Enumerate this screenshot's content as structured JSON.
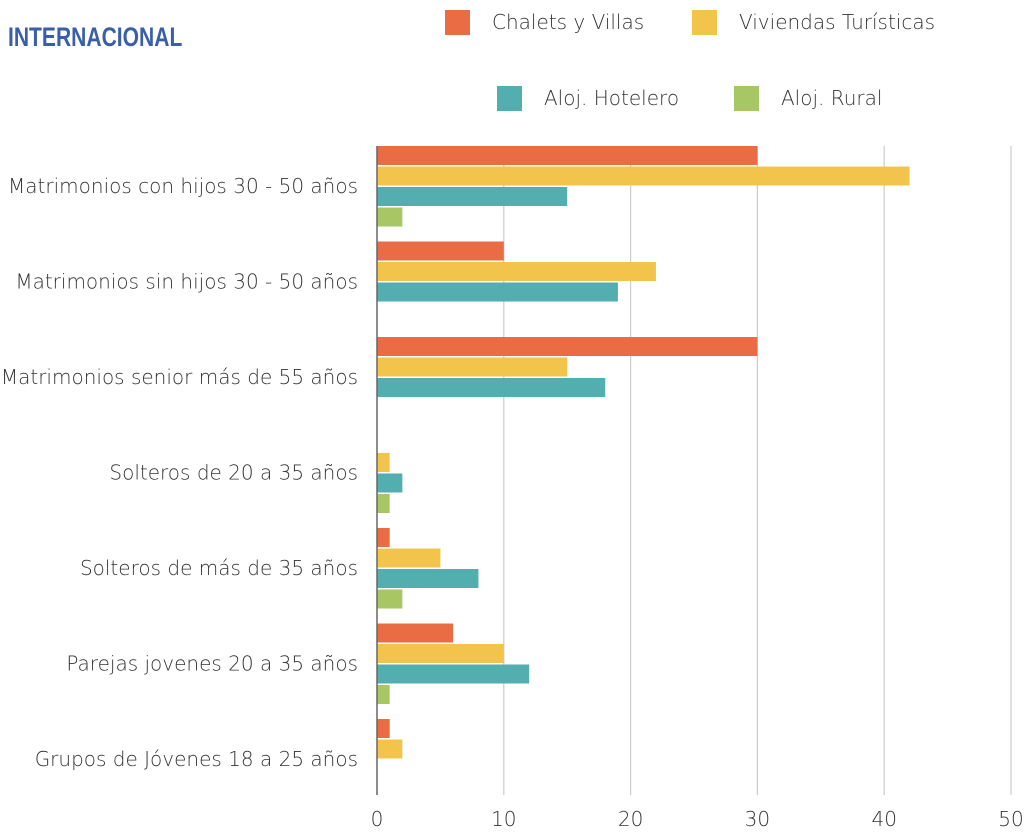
{
  "title": "INTERNACIONAL",
  "colors": {
    "title": "#3a5ea8",
    "grid": "#cccccc",
    "axis": "#666666"
  },
  "chart_data": {
    "type": "bar",
    "orientation": "horizontal",
    "categories": [
      "Matrimonios con hijos 30 - 50 años",
      "Matrimonios sin hijos 30 - 50 años",
      "Matrimonios senior más de 55 años",
      "Solteros de 20 a 35 años",
      "Solteros de más de 35 años",
      "Parejas jovenes 20 a 35 años",
      "Grupos de Jóvenes 18 a 25 años"
    ],
    "series": [
      {
        "name": "Chalets y Villas",
        "color": "#ea6c45",
        "values": [
          30,
          10,
          30,
          0,
          1,
          6,
          1
        ]
      },
      {
        "name": "Viviendas Turísticas",
        "color": "#f2c44c",
        "values": [
          42,
          22,
          15,
          1,
          5,
          10,
          2
        ]
      },
      {
        "name": "Aloj. Hotelero",
        "color": "#52aeaf",
        "values": [
          15,
          19,
          18,
          2,
          8,
          12,
          0
        ]
      },
      {
        "name": "Aloj. Rural",
        "color": "#a6c763",
        "values": [
          2,
          0,
          0,
          1,
          2,
          1,
          0
        ]
      }
    ],
    "xlim": [
      0,
      50
    ],
    "xticks": [
      "0",
      "10",
      "20",
      "30",
      "40",
      "50"
    ],
    "grid": true,
    "legend_position": "top"
  }
}
